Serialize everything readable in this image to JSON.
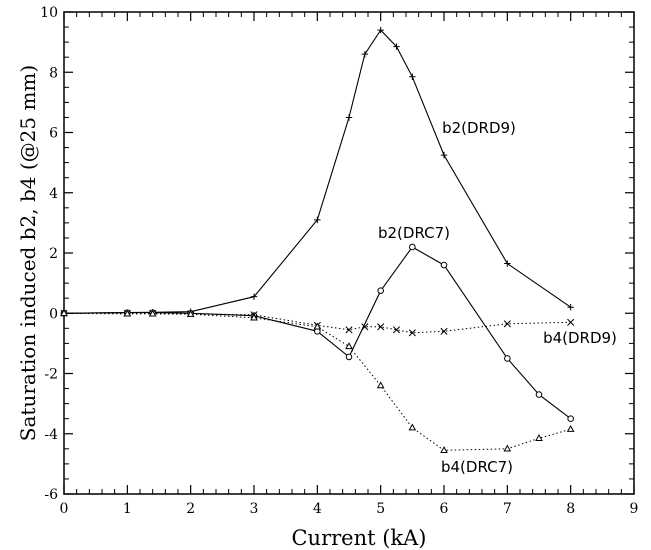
{
  "chart_data": {
    "type": "line",
    "xlabel": "Current (kA)",
    "ylabel": "Saturation induced b2, b4 (@25 mm)",
    "xlim": [
      0,
      9
    ],
    "ylim": [
      -6,
      10
    ],
    "x_ticks": [
      "0",
      "1",
      "2",
      "3",
      "4",
      "5",
      "6",
      "7",
      "8",
      "9"
    ],
    "y_ticks": [
      "-6",
      "-4",
      "-2",
      "0",
      "2",
      "4",
      "6",
      "8",
      "10"
    ],
    "grid": false,
    "series": [
      {
        "name": "b2(DRD9)",
        "marker": "plus",
        "line": "solid",
        "x": [
          0,
          1,
          1.4,
          2,
          3,
          4,
          4.5,
          4.75,
          5,
          5.25,
          5.5,
          6,
          7,
          8
        ],
        "y": [
          0,
          0.02,
          0.03,
          0.05,
          0.55,
          3.1,
          6.5,
          8.6,
          9.4,
          8.85,
          7.85,
          5.25,
          1.65,
          0.2
        ]
      },
      {
        "name": "b2(DRC7)",
        "marker": "circle",
        "line": "solid",
        "x": [
          0,
          1,
          1.4,
          2,
          3,
          4,
          4.5,
          5,
          5.5,
          6,
          7,
          7.5,
          8
        ],
        "y": [
          0,
          0.02,
          0.02,
          0.0,
          -0.08,
          -0.6,
          -1.45,
          0.75,
          2.2,
          1.6,
          -1.5,
          -2.7,
          -3.5
        ]
      },
      {
        "name": "b4(DRD9)",
        "marker": "x",
        "line": "dotted",
        "x": [
          0,
          1,
          1.4,
          2,
          3,
          4,
          4.5,
          4.75,
          5,
          5.25,
          5.5,
          6,
          7,
          8
        ],
        "y": [
          0,
          0,
          0,
          -0.02,
          -0.05,
          -0.4,
          -0.55,
          -0.45,
          -0.45,
          -0.55,
          -0.65,
          -0.6,
          -0.35,
          -0.3
        ]
      },
      {
        "name": "b4(DRC7)",
        "marker": "triangle",
        "line": "dotted",
        "x": [
          0,
          1,
          1.4,
          2,
          3,
          4,
          4.5,
          5,
          5.5,
          6,
          7,
          7.5,
          8
        ],
        "y": [
          0,
          -0.02,
          -0.02,
          -0.03,
          -0.15,
          -0.45,
          -1.1,
          -2.4,
          -3.8,
          -4.55,
          -4.5,
          -4.15,
          -3.85
        ]
      }
    ]
  }
}
